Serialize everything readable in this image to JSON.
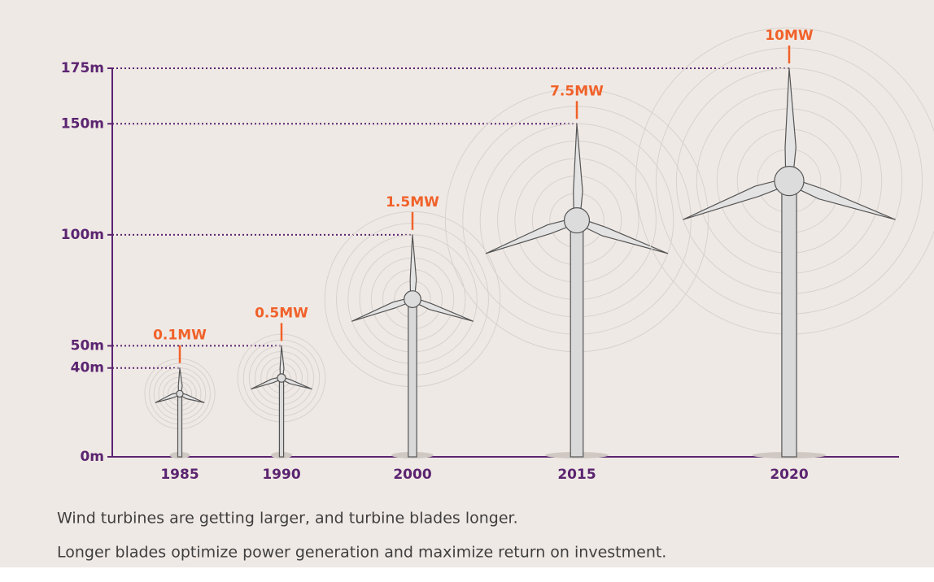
{
  "chart_data": {
    "type": "turbine",
    "categories": [
      "1985",
      "1990",
      "2000",
      "2015",
      "2020"
    ],
    "values": [
      40,
      50,
      100,
      150,
      175
    ],
    "power": {
      "values": [
        0.1,
        0.5,
        1.5,
        7.5,
        10
      ],
      "value_labels": [
        "0.1MW",
        "0.5MW",
        "1.5MW",
        "7.5MW",
        "10MW"
      ]
    },
    "ylim": [
      0,
      175
    ],
    "yticks": [
      {
        "value": 0,
        "label": "0m"
      },
      {
        "value": 40,
        "label": "40m"
      },
      {
        "value": 50,
        "label": "50m"
      },
      {
        "value": 100,
        "label": "100m"
      },
      {
        "value": 150,
        "label": "150m"
      },
      {
        "value": 175,
        "label": "175m"
      }
    ],
    "notes": [
      "Wind turbines are getting larger, and turbine blades longer.",
      "Longer blades optimize power generation and maximize return on investment."
    ]
  }
}
